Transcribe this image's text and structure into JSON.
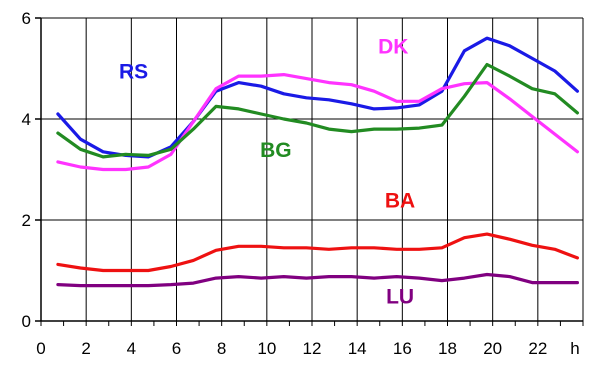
{
  "chart_data": {
    "type": "line",
    "x_unit_label": "h",
    "xlim": [
      0,
      24
    ],
    "ylim": [
      0,
      6
    ],
    "x_ticks": [
      0,
      2,
      4,
      6,
      8,
      10,
      12,
      14,
      16,
      18,
      20,
      22
    ],
    "y_ticks": [
      0,
      2,
      4,
      6
    ],
    "grid": true,
    "x": [
      0.75,
      1.75,
      2.75,
      3.75,
      4.75,
      5.75,
      6.75,
      7.75,
      8.75,
      9.75,
      10.75,
      11.75,
      12.75,
      13.75,
      14.75,
      15.75,
      16.75,
      17.75,
      18.75,
      19.75,
      20.75,
      21.75,
      22.75,
      23.75
    ],
    "series": [
      {
        "name": "RS",
        "color": "#1a1ae6",
        "label_at": [
          4.1,
          4.8
        ],
        "values": [
          4.1,
          3.6,
          3.35,
          3.28,
          3.25,
          3.45,
          3.95,
          4.55,
          4.72,
          4.65,
          4.5,
          4.42,
          4.38,
          4.3,
          4.2,
          4.22,
          4.28,
          4.55,
          5.35,
          5.6,
          5.45,
          5.2,
          4.95,
          4.55
        ]
      },
      {
        "name": "DK",
        "color": "#ff33ff",
        "label_at": [
          15.6,
          5.3
        ],
        "values": [
          3.15,
          3.05,
          3.0,
          3.0,
          3.05,
          3.3,
          3.95,
          4.6,
          4.85,
          4.85,
          4.88,
          4.8,
          4.72,
          4.68,
          4.55,
          4.35,
          4.35,
          4.6,
          4.7,
          4.72,
          4.4,
          4.05,
          3.7,
          3.35
        ]
      },
      {
        "name": "BG",
        "color": "#228b22",
        "label_at": [
          10.4,
          3.25
        ],
        "values": [
          3.72,
          3.4,
          3.25,
          3.3,
          3.28,
          3.4,
          3.8,
          4.25,
          4.2,
          4.1,
          4.0,
          3.92,
          3.8,
          3.75,
          3.8,
          3.8,
          3.82,
          3.88,
          4.45,
          5.08,
          4.85,
          4.6,
          4.5,
          4.12
        ]
      },
      {
        "name": "BA",
        "color": "#ee1111",
        "label_at": [
          15.9,
          2.25
        ],
        "values": [
          1.12,
          1.05,
          1.0,
          1.0,
          1.0,
          1.08,
          1.2,
          1.4,
          1.48,
          1.48,
          1.45,
          1.45,
          1.42,
          1.45,
          1.45,
          1.42,
          1.42,
          1.45,
          1.65,
          1.72,
          1.62,
          1.5,
          1.42,
          1.25
        ]
      },
      {
        "name": "LU",
        "color": "#800080",
        "label_at": [
          15.9,
          0.35
        ],
        "values": [
          0.72,
          0.7,
          0.7,
          0.7,
          0.7,
          0.72,
          0.75,
          0.85,
          0.88,
          0.85,
          0.88,
          0.85,
          0.88,
          0.88,
          0.85,
          0.88,
          0.85,
          0.8,
          0.85,
          0.92,
          0.88,
          0.76,
          0.76,
          0.76
        ]
      }
    ]
  }
}
